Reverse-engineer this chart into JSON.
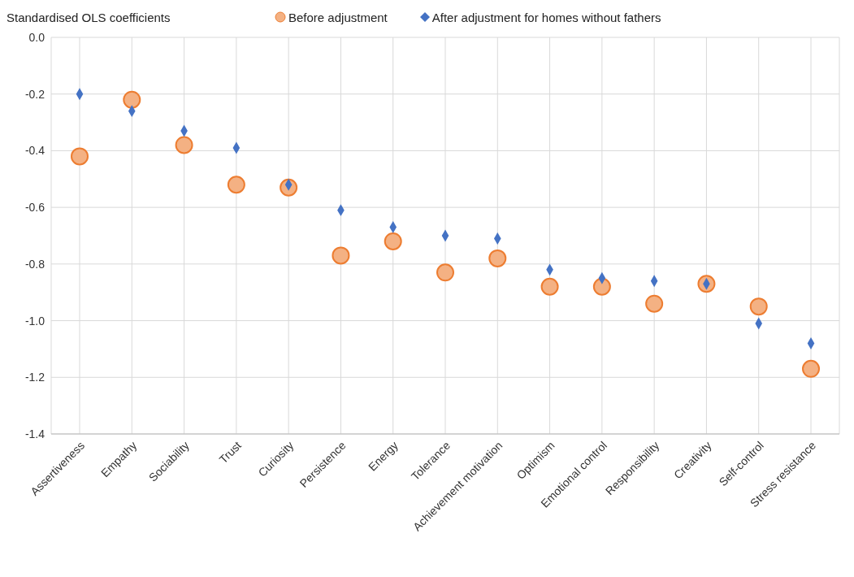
{
  "chart_data": {
    "type": "scatter",
    "ylabel": "Standardised OLS coefficients",
    "categories": [
      "Assertiveness",
      "Empathy",
      "Sociability",
      "Trust",
      "Curiosity",
      "Persistence",
      "Energy",
      "Tolerance",
      "Achievement motivation",
      "Optimism",
      "Emotional control",
      "Responsibility",
      "Creativity",
      "Self-control",
      "Stress resistance"
    ],
    "series": [
      {
        "name": "Before adjustment",
        "color": "#f4b183",
        "marker": "circle",
        "values": [
          -0.42,
          -0.22,
          -0.38,
          -0.52,
          -0.53,
          -0.77,
          -0.72,
          -0.83,
          -0.78,
          -0.88,
          -0.88,
          -0.94,
          -0.87,
          -0.95,
          -1.17
        ]
      },
      {
        "name": "After adjustment for homes without fathers",
        "color": "#4472c4",
        "marker": "diamond",
        "values": [
          -0.2,
          -0.26,
          -0.33,
          -0.39,
          -0.52,
          -0.61,
          -0.67,
          -0.7,
          -0.71,
          -0.82,
          -0.85,
          -0.86,
          -0.87,
          -1.01,
          -1.08
        ]
      }
    ],
    "ylim": [
      -1.4,
      0
    ],
    "yticks": [
      {
        "value": 0,
        "label": "0.0"
      },
      -0.2,
      -0.4,
      -0.6,
      -0.8,
      {
        "value": -1,
        "label": "-1.0"
      },
      -1.2,
      -1.4
    ],
    "grid": true,
    "legend": "top"
  }
}
